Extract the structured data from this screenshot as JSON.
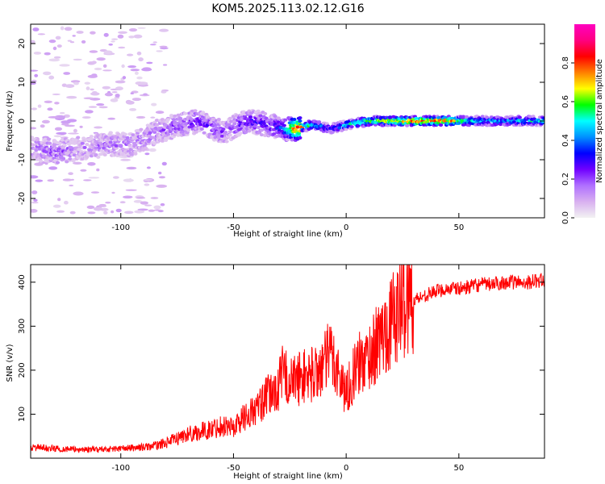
{
  "title": "KOM5.2025.113.02.12.G16",
  "chart_data": [
    {
      "type": "heatmap",
      "xlabel": "Height of straight line (km)",
      "ylabel": "Frequency (Hz)",
      "xlim": [
        -140,
        88
      ],
      "ylim": [
        -25,
        25
      ],
      "xticks": [
        -100,
        -50,
        0,
        50
      ],
      "xtick_labels": [
        "-100",
        "-50",
        "0",
        "50"
      ],
      "yticks": [
        -20,
        -10,
        0,
        10,
        20
      ],
      "ytick_labels": [
        "-20",
        "-10",
        "0",
        "10",
        "20"
      ],
      "colorbar": {
        "label": "Normalized spectral amplitude",
        "range": [
          0,
          1
        ],
        "ticks": [
          0.0,
          0.2,
          0.4,
          0.6,
          0.8
        ],
        "tick_labels": [
          "0.0",
          "0.2",
          "0.4",
          "0.6",
          "0.8"
        ],
        "colors": [
          "#f2f2f2",
          "#d8b0f0",
          "#b070ff",
          "#7000ff",
          "#0000ff",
          "#0090ff",
          "#00ffff",
          "#00ff00",
          "#ffff00",
          "#ff8000",
          "#ff0000",
          "#ff0080",
          "#ff00c0"
        ]
      },
      "ridge": [
        {
          "x": -140,
          "f": -7,
          "amp": 0.12
        },
        {
          "x": -128,
          "f": -8,
          "amp": 0.18
        },
        {
          "x": -118,
          "f": -7,
          "amp": 0.12
        },
        {
          "x": -105,
          "f": -6,
          "amp": 0.15
        },
        {
          "x": -95,
          "f": -6,
          "amp": 0.14
        },
        {
          "x": -85,
          "f": -3,
          "amp": 0.15
        },
        {
          "x": -75,
          "f": -1,
          "amp": 0.2
        },
        {
          "x": -65,
          "f": 0,
          "amp": 0.25
        },
        {
          "x": -55,
          "f": -3,
          "amp": 0.2
        },
        {
          "x": -48,
          "f": -1,
          "amp": 0.22
        },
        {
          "x": -42,
          "f": 0,
          "amp": 0.28
        },
        {
          "x": -35,
          "f": -1,
          "amp": 0.25
        },
        {
          "x": -28,
          "f": -2,
          "amp": 0.35
        },
        {
          "x": -22,
          "f": -2,
          "amp": 0.85
        },
        {
          "x": -15,
          "f": -1,
          "amp": 0.5
        },
        {
          "x": -7,
          "f": -2,
          "amp": 0.3
        },
        {
          "x": 0,
          "f": -1,
          "amp": 0.5
        },
        {
          "x": 10,
          "f": 0,
          "amp": 0.6
        },
        {
          "x": 20,
          "f": 0,
          "amp": 0.7
        },
        {
          "x": 30,
          "f": 0,
          "amp": 0.85
        },
        {
          "x": 45,
          "f": 0,
          "amp": 0.8
        },
        {
          "x": 55,
          "f": 0,
          "amp": 0.5
        },
        {
          "x": 70,
          "f": 0,
          "amp": 0.45
        },
        {
          "x": 88,
          "f": 0,
          "amp": 0.5
        }
      ]
    },
    {
      "type": "line",
      "xlabel": "Height of straight line (km)",
      "ylabel": "SNR (v/v)",
      "xlim": [
        -140,
        88
      ],
      "ylim": [
        0,
        440
      ],
      "xticks": [
        -100,
        -50,
        0,
        50
      ],
      "xtick_labels": [
        "-100",
        "-50",
        "0",
        "50"
      ],
      "yticks": [
        100,
        200,
        300,
        400
      ],
      "ytick_labels": [
        "100",
        "200",
        "300",
        "400"
      ],
      "color": "#ff0000",
      "series": [
        {
          "x": [
            -140,
            -130,
            -120,
            -110,
            -100,
            -90,
            -85,
            -80,
            -75,
            -70,
            -65,
            -60,
            -55,
            -50,
            -45,
            -40,
            -35,
            -30,
            -28,
            -25,
            -20,
            -15,
            -10,
            -7,
            -5,
            -2,
            0,
            5,
            10,
            15,
            20,
            25,
            30,
            35,
            40,
            45,
            50,
            55,
            60,
            65,
            70,
            75,
            80,
            88
          ],
          "y": [
            25,
            22,
            20,
            20,
            22,
            25,
            28,
            35,
            45,
            55,
            60,
            65,
            75,
            70,
            95,
            110,
            140,
            160,
            200,
            170,
            185,
            190,
            210,
            240,
            220,
            170,
            150,
            210,
            230,
            270,
            310,
            345,
            360,
            370,
            380,
            385,
            385,
            390,
            395,
            395,
            400,
            400,
            400,
            405
          ]
        }
      ],
      "noise": 0.35
    }
  ]
}
